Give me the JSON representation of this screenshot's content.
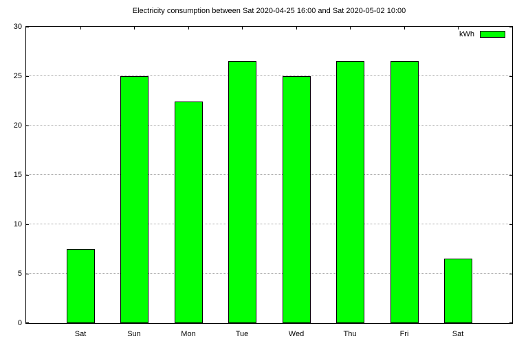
{
  "legend": {
    "label": "kWh",
    "swatch_color": "#00ff00"
  },
  "chart_data": {
    "type": "bar",
    "title": "Electricity consumption between Sat 2020-04-25 16:00 and Sat 2020-05-02 10:00",
    "categories": [
      "Sat",
      "Sun",
      "Mon",
      "Tue",
      "Wed",
      "Thu",
      "Fri",
      "Sat"
    ],
    "values": [
      7.5,
      25.0,
      22.4,
      26.5,
      25.0,
      26.5,
      26.5,
      6.5
    ],
    "series_name": "kWh",
    "xlabel": "",
    "ylabel": "",
    "ylim": [
      0,
      30
    ],
    "yticks": [
      0,
      5,
      10,
      15,
      20,
      25,
      30
    ],
    "grid": "horizontal-dotted",
    "legend_position": "top-right",
    "bar_color": "#00ff00",
    "bar_border_color": "#000000",
    "gridline_color": "#a6a6a6",
    "background_color": "#ffffff"
  }
}
